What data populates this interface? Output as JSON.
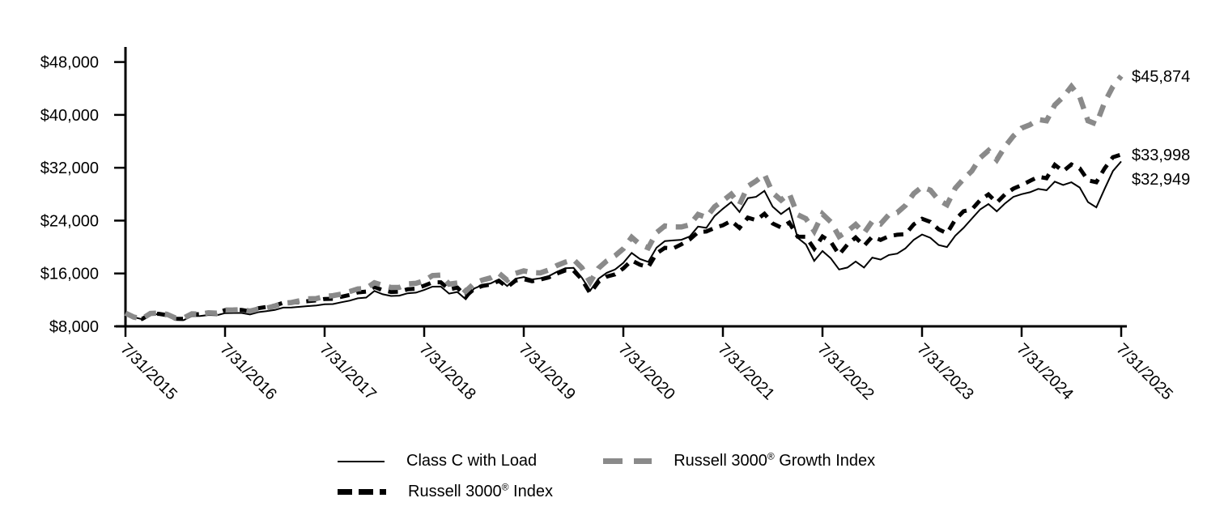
{
  "chart_data": {
    "type": "line",
    "title": "",
    "x_resolution": "monthly",
    "x_range": [
      "7/31/2015",
      "7/31/2025"
    ],
    "x_tick_labels": [
      "7/31/2015",
      "7/31/2016",
      "7/31/2017",
      "7/31/2018",
      "7/31/2019",
      "7/31/2020",
      "7/31/2021",
      "7/31/2022",
      "7/31/2023",
      "7/31/2024",
      "7/31/2025"
    ],
    "y_axis": {
      "tick_values": [
        8000,
        16000,
        24000,
        32000,
        40000,
        48000
      ],
      "tick_labels": [
        "$8,000",
        "$16,000",
        "$24,000",
        "$32,000",
        "$40,000",
        "$48,000"
      ],
      "ylim": [
        8000,
        48000
      ]
    },
    "grid": "off",
    "legend_position": "bottom",
    "series": [
      {
        "name": "Class C with Load",
        "style": "solid-thin",
        "color": "#000000",
        "end_value": 32949,
        "end_label": "$32,949",
        "values": [
          10000,
          9390,
          9080,
          9790,
          9840,
          9610,
          8980,
          8930,
          9540,
          9560,
          9710,
          9670,
          10000,
          10020,
          10020,
          9800,
          10150,
          10300,
          10480,
          10830,
          10840,
          10950,
          11060,
          11150,
          11350,
          11370,
          11640,
          11890,
          12240,
          12350,
          13350,
          12850,
          12600,
          12650,
          13000,
          13100,
          13500,
          14000,
          14020,
          12950,
          13200,
          12100,
          13700,
          14250,
          14500,
          15100,
          14100,
          15200,
          15450,
          15100,
          15280,
          15600,
          16250,
          16800,
          16850,
          15350,
          13400,
          15200,
          16100,
          16600,
          17600,
          19100,
          18200,
          17750,
          19900,
          20900,
          21000,
          21100,
          21600,
          23100,
          22900,
          24700,
          25800,
          26800,
          25300,
          27400,
          27600,
          28500,
          26100,
          25000,
          25900,
          21400,
          20400,
          17900,
          19400,
          18300,
          16600,
          16900,
          17800,
          16900,
          18400,
          18100,
          18800,
          19000,
          19800,
          21100,
          21900,
          21400,
          20300,
          20000,
          21700,
          22900,
          24300,
          25700,
          26500,
          25400,
          26600,
          27600,
          28000,
          28300,
          28800,
          28600,
          29900,
          29400,
          29800,
          29000,
          26800,
          26000,
          28800,
          31500,
          32949
        ]
      },
      {
        "name": "Russell 3000® Index",
        "style": "dashed-black",
        "color": "#000000",
        "end_value": 33998,
        "end_label": "$33,998",
        "values": [
          10000,
          9400,
          9110,
          9840,
          9900,
          9690,
          9150,
          9140,
          9790,
          9850,
          10030,
          10050,
          10450,
          10480,
          10490,
          10270,
          10730,
          10940,
          11150,
          11560,
          11570,
          11690,
          11810,
          11920,
          12140,
          12170,
          12470,
          12740,
          13130,
          13260,
          13970,
          13460,
          13190,
          13240,
          13610,
          13700,
          14150,
          14650,
          14670,
          13590,
          13860,
          12570,
          13640,
          14120,
          14320,
          14890,
          13930,
          14910,
          15130,
          14820,
          15080,
          15400,
          15990,
          16450,
          16430,
          15090,
          13010,
          14730,
          15520,
          15870,
          16770,
          17980,
          17330,
          16960,
          19030,
          19880,
          19790,
          20420,
          21150,
          22250,
          22350,
          22900,
          23290,
          23960,
          22890,
          24440,
          24070,
          25040,
          23560,
          22960,
          23700,
          21580,
          21550,
          19740,
          21590,
          20790,
          18850,
          20380,
          21440,
          20180,
          21580,
          21080,
          21640,
          21860,
          21940,
          23440,
          24280,
          23810,
          22680,
          22080,
          24140,
          25420,
          25700,
          27090,
          27960,
          26720,
          27970,
          28830,
          29370,
          30010,
          30630,
          30410,
          32450,
          31470,
          32500,
          31900,
          30100,
          29810,
          31900,
          33600,
          33998
        ]
      },
      {
        "name": "Russell 3000® Growth Index",
        "style": "dashed-gray",
        "color": "#8a8a8a",
        "end_value": 45874,
        "end_label": "$45,874",
        "values": [
          10000,
          9400,
          9150,
          9950,
          10010,
          9830,
          9270,
          9250,
          9900,
          9850,
          10050,
          10000,
          10460,
          10480,
          10520,
          10300,
          10610,
          10740,
          11080,
          11490,
          11600,
          11870,
          12170,
          12200,
          12520,
          12640,
          12880,
          13260,
          13660,
          13740,
          14590,
          14200,
          13880,
          13900,
          14420,
          14510,
          14900,
          15680,
          15760,
          14390,
          14560,
          13290,
          14470,
          15000,
          15330,
          16040,
          14980,
          16020,
          16400,
          16130,
          16090,
          16530,
          17210,
          17720,
          18110,
          16850,
          14680,
          16800,
          17900,
          18690,
          19750,
          21480,
          20390,
          19890,
          22180,
          23200,
          23050,
          23040,
          23370,
          24940,
          24480,
          26110,
          27010,
          28000,
          26430,
          29200,
          30000,
          31000,
          28200,
          27100,
          28100,
          24900,
          24300,
          22400,
          25000,
          23800,
          21600,
          22400,
          23400,
          22100,
          23900,
          23500,
          24900,
          25200,
          26300,
          28100,
          29100,
          28600,
          27100,
          26400,
          28900,
          30300,
          31500,
          33500,
          34600,
          33200,
          35200,
          36800,
          38000,
          38500,
          39300,
          39100,
          41500,
          42700,
          44300,
          42700,
          39100,
          38600,
          41900,
          44300,
          45874
        ]
      }
    ],
    "legend": {
      "items": [
        {
          "pre": "Class C with Load",
          "sup": "",
          "post": ""
        },
        {
          "pre": "Russell 3000",
          "sup": "®",
          "post": " Growth Index"
        },
        {
          "pre": "Russell 3000",
          "sup": "®",
          "post": " Index"
        }
      ]
    },
    "colors": {
      "axis": "#000000",
      "gray_series": "#8a8a8a",
      "background": "#ffffff"
    }
  }
}
